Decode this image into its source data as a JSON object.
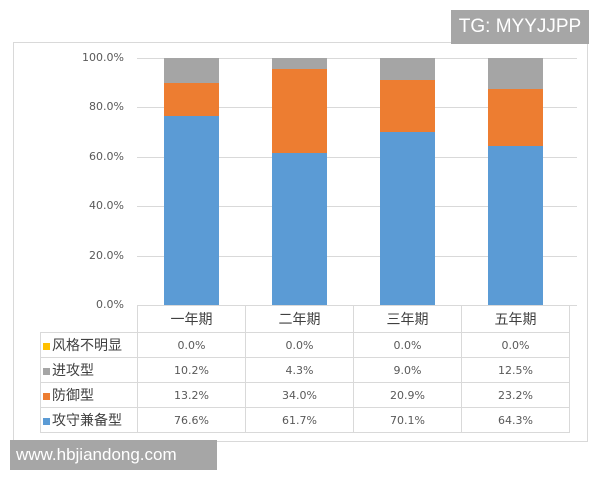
{
  "watermarks": {
    "top_right": "TG: MYYJJPP",
    "bottom_left": "www.hbjiandong.com"
  },
  "colors": {
    "风格不明显": "#ffc000",
    "进攻型": "#a5a5a5",
    "防御型": "#ed7d31",
    "攻守兼备型": "#5b9bd5",
    "grid": "#d9d9d9"
  },
  "y_axis": {
    "ticks": [
      "100.0%",
      "80.0%",
      "60.0%",
      "40.0%",
      "20.0%",
      "0.0%"
    ]
  },
  "table": {
    "categories": [
      "一年期",
      "二年期",
      "三年期",
      "五年期"
    ],
    "rows": [
      {
        "label": "风格不明显",
        "values": [
          "0.0%",
          "0.0%",
          "0.0%",
          "0.0%"
        ]
      },
      {
        "label": "进攻型",
        "values": [
          "10.2%",
          "4.3%",
          "9.0%",
          "12.5%"
        ]
      },
      {
        "label": "防御型",
        "values": [
          "13.2%",
          "34.0%",
          "20.9%",
          "23.2%"
        ]
      },
      {
        "label": "攻守兼备型",
        "values": [
          "76.6%",
          "61.7%",
          "70.1%",
          "64.3%"
        ]
      }
    ]
  },
  "chart_data": {
    "type": "bar",
    "stacked": true,
    "percent_stacked": true,
    "title": "",
    "xlabel": "",
    "ylabel": "",
    "ylim": [
      0,
      100
    ],
    "y_ticks": [
      "0.0%",
      "20.0%",
      "40.0%",
      "60.0%",
      "80.0%",
      "100.0%"
    ],
    "grid": true,
    "legend_position": "data-table (bottom)",
    "categories": [
      "一年期",
      "二年期",
      "三年期",
      "五年期"
    ],
    "series": [
      {
        "name": "攻守兼备型",
        "color": "#5b9bd5",
        "values": [
          76.6,
          61.7,
          70.1,
          64.3
        ]
      },
      {
        "name": "防御型",
        "color": "#ed7d31",
        "values": [
          13.2,
          34.0,
          20.9,
          23.2
        ]
      },
      {
        "name": "进攻型",
        "color": "#a5a5a5",
        "values": [
          10.2,
          4.3,
          9.0,
          12.5
        ]
      },
      {
        "name": "风格不明显",
        "color": "#ffc000",
        "values": [
          0.0,
          0.0,
          0.0,
          0.0
        ]
      }
    ]
  }
}
